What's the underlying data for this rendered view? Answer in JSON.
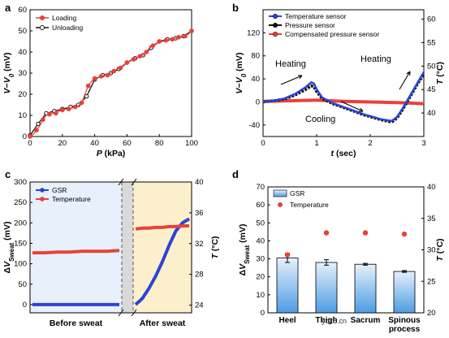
{
  "panels": {
    "a": "a",
    "b": "b",
    "c": "c",
    "d": "d"
  },
  "watermark": "ybx8.cn",
  "chart_data": [
    {
      "id": "a",
      "type": "line",
      "xlabel": "P (kPa)",
      "ylabel": "V−V0 (mV)",
      "xlim": [
        0,
        100
      ],
      "ylim": [
        0,
        60
      ],
      "xticks": [
        0,
        20,
        40,
        60,
        80,
        100
      ],
      "yticks": [
        0,
        10,
        20,
        30,
        40,
        50,
        60
      ],
      "legend_position": "top-left",
      "series": [
        {
          "name": "Loading",
          "color": "#e8413a",
          "x": [
            0,
            2,
            4,
            6,
            8,
            10,
            12,
            14,
            16,
            18,
            20,
            22,
            24,
            26,
            28,
            30,
            32,
            34,
            36,
            38,
            40,
            42,
            44,
            46,
            48,
            50,
            52,
            54,
            56,
            58,
            60,
            62,
            64,
            66,
            68,
            70,
            72,
            74,
            76,
            78,
            80,
            82,
            84,
            86,
            88,
            90,
            92,
            94,
            96,
            98,
            100
          ],
          "y": [
            0,
            1,
            3,
            5,
            8,
            10,
            10.5,
            11,
            11,
            12,
            12.5,
            13,
            13,
            13.5,
            14,
            14.5,
            16,
            20,
            24,
            26,
            27.5,
            28,
            28.5,
            29,
            29,
            30,
            31,
            32,
            32.5,
            33.5,
            35,
            36,
            36.5,
            37.5,
            38,
            38.5,
            40,
            42,
            43,
            44,
            45,
            45,
            45.5,
            46,
            46,
            46.5,
            47,
            47,
            47.5,
            48.5,
            50
          ]
        },
        {
          "name": "Unloading",
          "color": "#111111",
          "x": [
            0,
            5,
            10,
            15,
            20,
            25,
            30,
            35,
            40,
            45,
            50,
            55,
            60,
            65,
            70,
            75,
            80,
            85,
            90,
            95,
            100
          ],
          "y": [
            0.5,
            6,
            11,
            12,
            13,
            14,
            15,
            19,
            27,
            29,
            30,
            32,
            35,
            37,
            38.5,
            42,
            45,
            46,
            46.5,
            47.5,
            50
          ]
        }
      ]
    },
    {
      "id": "b",
      "type": "line",
      "xlabel": "t (sec)",
      "ylabel": "V−V0 (mV)",
      "y2label": "T (°C)",
      "xlim": [
        0,
        3
      ],
      "ylim": [
        -60,
        160
      ],
      "y2lim": [
        35,
        62
      ],
      "xticks": [
        0,
        1,
        2,
        3
      ],
      "yticks": [
        -40,
        0,
        40,
        80,
        120
      ],
      "y2ticks": [
        40,
        45,
        50,
        55,
        60
      ],
      "legend_position": "top-left",
      "annotations": [
        "Heating",
        "Cooling",
        "Heating"
      ],
      "series": [
        {
          "name": "Temperature sensor",
          "color": "#2a44d6",
          "x": [
            0,
            0.2,
            0.4,
            0.6,
            0.8,
            0.9,
            0.95,
            1.0,
            1.1,
            1.3,
            1.6,
            1.9,
            2.2,
            2.4,
            2.5,
            2.6,
            2.7,
            2.8,
            2.9,
            3.0
          ],
          "y": [
            0,
            2,
            6,
            14,
            26,
            34,
            32,
            22,
            8,
            -2,
            -12,
            -22,
            -30,
            -33,
            -26,
            -12,
            4,
            20,
            36,
            52
          ]
        },
        {
          "name": "Pressure sensor",
          "color": "#111111",
          "x": [
            0,
            0.2,
            0.4,
            0.6,
            0.8,
            0.9,
            0.95,
            1.0,
            1.1,
            1.3,
            1.6,
            1.9,
            2.2,
            2.4,
            2.5,
            2.6,
            2.7,
            2.8,
            2.9,
            3.0
          ],
          "y": [
            0,
            2,
            5,
            12,
            22,
            28,
            26,
            18,
            6,
            -3,
            -13,
            -23,
            -31,
            -35,
            -28,
            -14,
            2,
            18,
            34,
            48
          ]
        },
        {
          "name": "Compensated pressure sensor",
          "color": "#e8413a",
          "x": [
            0,
            0.5,
            1.0,
            1.5,
            2.0,
            2.5,
            3.0
          ],
          "y": [
            1,
            2,
            3,
            1,
            0,
            -1,
            -3
          ]
        }
      ]
    },
    {
      "id": "c",
      "type": "line",
      "xlabel": "",
      "ylabel": "ΔV_Sweat (mV)",
      "y2label": "T (°C)",
      "ylim": [
        -20,
        300
      ],
      "y2lim": [
        23,
        40
      ],
      "yticks": [
        0,
        50,
        100,
        150,
        200,
        250,
        300
      ],
      "y2ticks": [
        24,
        28,
        32,
        36,
        40
      ],
      "categories": [
        "Before sweat",
        "After sweat"
      ],
      "legend_position": "top-left",
      "series": [
        {
          "name": "GSR",
          "color": "#2a44d6",
          "segments": [
            {
              "region": "Before sweat",
              "y": [
                0,
                0,
                0,
                0,
                0,
                0,
                0,
                0
              ]
            },
            {
              "region": "After sweat",
              "y": [
                0,
                15,
                40,
                70,
                105,
                145,
                180,
                200,
                210
              ]
            }
          ]
        },
        {
          "name": "Temperature",
          "color": "#e8413a",
          "segments": [
            {
              "region": "Before sweat",
              "y": [
                30.8,
                30.8,
                30.9,
                30.9,
                31.0,
                31.0,
                31.0,
                31.1
              ]
            },
            {
              "region": "After sweat",
              "y": [
                33.9,
                34.0,
                34.0,
                34.1,
                34.1,
                34.2,
                34.2,
                34.3,
                34.3
              ]
            }
          ]
        }
      ]
    },
    {
      "id": "d",
      "type": "bar",
      "ylabel": "ΔV_Sweat (mV)",
      "y2label": "T (°C)",
      "ylim": [
        0,
        70
      ],
      "y2lim": [
        20,
        40
      ],
      "yticks": [
        0,
        10,
        20,
        30,
        40,
        50,
        60,
        70
      ],
      "y2ticks": [
        20,
        25,
        30,
        35,
        40
      ],
      "categories": [
        "Heel",
        "Thigh",
        "Sacrum",
        "Spinous process"
      ],
      "legend_position": "top-left",
      "series": [
        {
          "name": "GSR",
          "color": "#5fa8e8",
          "values": [
            30.5,
            28,
            27,
            23
          ],
          "errors": [
            2.5,
            1.5,
            0.5,
            0.5
          ]
        },
        {
          "name": "Temperature",
          "color": "#e8413a",
          "values": [
            29.2,
            32.7,
            32.7,
            32.5
          ]
        }
      ]
    }
  ]
}
